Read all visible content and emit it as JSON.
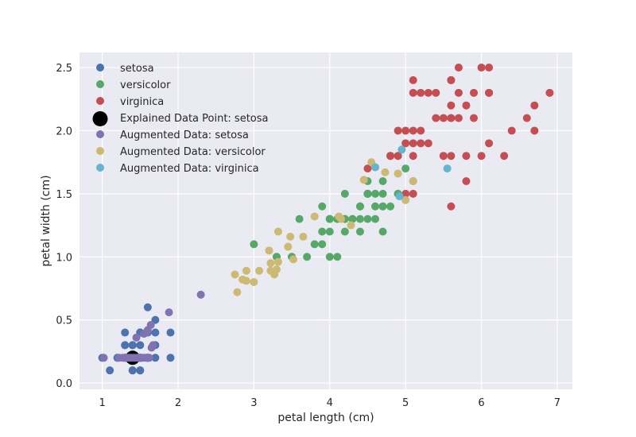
{
  "chart_data": {
    "type": "scatter",
    "title": "",
    "xlabel": "petal length (cm)",
    "ylabel": "petal width (cm)",
    "xlim": [
      0.7,
      7.2
    ],
    "ylim": [
      -0.05,
      2.62
    ],
    "xticks": [
      1,
      2,
      3,
      4,
      5,
      6,
      7
    ],
    "yticks": [
      0.0,
      0.5,
      1.0,
      1.5,
      2.0,
      2.5
    ],
    "xtick_labels": [
      "1",
      "2",
      "3",
      "4",
      "5",
      "6",
      "7"
    ],
    "ytick_labels": [
      "0.0",
      "0.5",
      "1.0",
      "1.5",
      "2.0",
      "2.5"
    ],
    "grid": true,
    "legend_position": "top-left",
    "series": [
      {
        "name": "setosa",
        "color": "#4c72b0",
        "marker": "small",
        "points": [
          [
            1.4,
            0.2
          ],
          [
            1.4,
            0.2
          ],
          [
            1.3,
            0.2
          ],
          [
            1.5,
            0.2
          ],
          [
            1.4,
            0.2
          ],
          [
            1.7,
            0.4
          ],
          [
            1.4,
            0.3
          ],
          [
            1.5,
            0.2
          ],
          [
            1.4,
            0.2
          ],
          [
            1.5,
            0.1
          ],
          [
            1.5,
            0.2
          ],
          [
            1.6,
            0.2
          ],
          [
            1.4,
            0.1
          ],
          [
            1.1,
            0.1
          ],
          [
            1.2,
            0.2
          ],
          [
            1.5,
            0.4
          ],
          [
            1.3,
            0.4
          ],
          [
            1.4,
            0.3
          ],
          [
            1.7,
            0.3
          ],
          [
            1.5,
            0.3
          ],
          [
            1.7,
            0.2
          ],
          [
            1.5,
            0.4
          ],
          [
            1.0,
            0.2
          ],
          [
            1.7,
            0.5
          ],
          [
            1.9,
            0.2
          ],
          [
            1.6,
            0.2
          ],
          [
            1.6,
            0.4
          ],
          [
            1.5,
            0.2
          ],
          [
            1.4,
            0.2
          ],
          [
            1.6,
            0.2
          ],
          [
            1.6,
            0.2
          ],
          [
            1.5,
            0.4
          ],
          [
            1.5,
            0.1
          ],
          [
            1.4,
            0.2
          ],
          [
            1.5,
            0.2
          ],
          [
            1.2,
            0.2
          ],
          [
            1.3,
            0.2
          ],
          [
            1.4,
            0.1
          ],
          [
            1.3,
            0.2
          ],
          [
            1.5,
            0.2
          ],
          [
            1.3,
            0.3
          ],
          [
            1.3,
            0.3
          ],
          [
            1.3,
            0.2
          ],
          [
            1.6,
            0.6
          ],
          [
            1.9,
            0.4
          ],
          [
            1.4,
            0.3
          ],
          [
            1.6,
            0.2
          ],
          [
            1.4,
            0.2
          ],
          [
            1.5,
            0.2
          ],
          [
            1.4,
            0.2
          ]
        ]
      },
      {
        "name": "versicolor",
        "color": "#55a868",
        "marker": "small",
        "points": [
          [
            4.7,
            1.4
          ],
          [
            4.5,
            1.5
          ],
          [
            4.9,
            1.5
          ],
          [
            4.0,
            1.3
          ],
          [
            4.6,
            1.5
          ],
          [
            4.5,
            1.3
          ],
          [
            4.7,
            1.6
          ],
          [
            3.3,
            1.0
          ],
          [
            4.6,
            1.3
          ],
          [
            3.9,
            1.4
          ],
          [
            3.5,
            1.0
          ],
          [
            4.2,
            1.5
          ],
          [
            4.0,
            1.0
          ],
          [
            4.7,
            1.4
          ],
          [
            3.6,
            1.3
          ],
          [
            4.4,
            1.4
          ],
          [
            4.5,
            1.5
          ],
          [
            4.1,
            1.0
          ],
          [
            4.5,
            1.5
          ],
          [
            3.9,
            1.1
          ],
          [
            4.8,
            1.8
          ],
          [
            4.0,
            1.3
          ],
          [
            4.9,
            1.5
          ],
          [
            4.7,
            1.2
          ],
          [
            4.3,
            1.3
          ],
          [
            4.4,
            1.4
          ],
          [
            4.8,
            1.4
          ],
          [
            5.0,
            1.7
          ],
          [
            4.5,
            1.5
          ],
          [
            3.5,
            1.0
          ],
          [
            3.8,
            1.1
          ],
          [
            3.7,
            1.0
          ],
          [
            3.9,
            1.2
          ],
          [
            5.1,
            1.6
          ],
          [
            4.5,
            1.5
          ],
          [
            4.5,
            1.6
          ],
          [
            4.7,
            1.5
          ],
          [
            4.4,
            1.3
          ],
          [
            4.1,
            1.3
          ],
          [
            4.0,
            1.3
          ],
          [
            4.4,
            1.2
          ],
          [
            4.6,
            1.4
          ],
          [
            4.0,
            1.2
          ],
          [
            3.3,
            1.0
          ],
          [
            4.2,
            1.3
          ],
          [
            4.2,
            1.2
          ],
          [
            4.2,
            1.3
          ],
          [
            4.3,
            1.3
          ],
          [
            3.0,
            1.1
          ],
          [
            4.1,
            1.3
          ]
        ]
      },
      {
        "name": "virginica",
        "color": "#c44e52",
        "marker": "small",
        "points": [
          [
            6.0,
            2.5
          ],
          [
            5.1,
            1.9
          ],
          [
            5.9,
            2.1
          ],
          [
            5.6,
            1.8
          ],
          [
            5.8,
            2.2
          ],
          [
            6.6,
            2.1
          ],
          [
            4.5,
            1.7
          ],
          [
            6.3,
            1.8
          ],
          [
            5.8,
            1.8
          ],
          [
            6.1,
            2.5
          ],
          [
            5.1,
            2.0
          ],
          [
            5.3,
            1.9
          ],
          [
            5.5,
            2.1
          ],
          [
            5.0,
            2.0
          ],
          [
            5.1,
            2.4
          ],
          [
            5.3,
            2.3
          ],
          [
            5.5,
            1.8
          ],
          [
            6.7,
            2.2
          ],
          [
            6.9,
            2.3
          ],
          [
            5.0,
            1.5
          ],
          [
            5.7,
            2.3
          ],
          [
            4.9,
            2.0
          ],
          [
            6.7,
            2.0
          ],
          [
            4.9,
            1.8
          ],
          [
            5.7,
            2.1
          ],
          [
            6.0,
            1.8
          ],
          [
            4.8,
            1.8
          ],
          [
            4.9,
            1.8
          ],
          [
            5.6,
            2.1
          ],
          [
            5.8,
            1.6
          ],
          [
            6.1,
            1.9
          ],
          [
            6.4,
            2.0
          ],
          [
            5.6,
            2.2
          ],
          [
            5.1,
            1.5
          ],
          [
            5.6,
            1.4
          ],
          [
            6.1,
            2.3
          ],
          [
            5.6,
            2.4
          ],
          [
            5.5,
            1.8
          ],
          [
            4.8,
            1.8
          ],
          [
            5.4,
            2.1
          ],
          [
            5.6,
            2.4
          ],
          [
            5.1,
            2.3
          ],
          [
            5.9,
            2.3
          ],
          [
            5.7,
            2.5
          ],
          [
            5.2,
            2.3
          ],
          [
            5.0,
            1.9
          ],
          [
            5.2,
            2.0
          ],
          [
            5.4,
            2.3
          ],
          [
            5.1,
            1.8
          ],
          [
            6.1,
            2.3
          ],
          [
            5.6,
            2.1
          ],
          [
            5.2,
            1.9
          ]
        ]
      },
      {
        "name": "Explained Data Point: setosa",
        "color": "#000000",
        "marker": "large",
        "points": [
          [
            1.4,
            0.2
          ]
        ]
      },
      {
        "name": "Augmented Data: setosa",
        "color": "#8172b2",
        "marker": "small",
        "points": [
          [
            1.02,
            0.2
          ],
          [
            1.22,
            0.2
          ],
          [
            1.27,
            0.2
          ],
          [
            1.32,
            0.2
          ],
          [
            1.35,
            0.2
          ],
          [
            1.38,
            0.2
          ],
          [
            1.42,
            0.2
          ],
          [
            1.45,
            0.2
          ],
          [
            1.48,
            0.2
          ],
          [
            1.52,
            0.2
          ],
          [
            1.55,
            0.2
          ],
          [
            1.58,
            0.2
          ],
          [
            1.62,
            0.2
          ],
          [
            1.45,
            0.36
          ],
          [
            1.55,
            0.39
          ],
          [
            1.6,
            0.42
          ],
          [
            1.64,
            0.46
          ],
          [
            1.58,
            0.4
          ],
          [
            1.67,
            0.3
          ],
          [
            1.65,
            0.28
          ],
          [
            1.88,
            0.56
          ],
          [
            2.3,
            0.7
          ]
        ]
      },
      {
        "name": "Augmented Data: versicolor",
        "color": "#ccb974",
        "marker": "small",
        "points": [
          [
            2.75,
            0.86
          ],
          [
            2.78,
            0.72
          ],
          [
            2.85,
            0.82
          ],
          [
            2.9,
            0.81
          ],
          [
            2.9,
            0.89
          ],
          [
            3.0,
            0.8
          ],
          [
            3.07,
            0.89
          ],
          [
            3.2,
            1.05
          ],
          [
            3.22,
            0.89
          ],
          [
            3.22,
            0.95
          ],
          [
            3.27,
            0.86
          ],
          [
            3.3,
            0.9
          ],
          [
            3.32,
            0.96
          ],
          [
            3.32,
            1.2
          ],
          [
            3.45,
            1.08
          ],
          [
            3.48,
            1.16
          ],
          [
            3.52,
            0.98
          ],
          [
            3.65,
            1.16
          ],
          [
            3.8,
            1.32
          ],
          [
            4.12,
            1.32
          ],
          [
            4.15,
            1.3
          ],
          [
            4.28,
            1.25
          ],
          [
            4.45,
            1.61
          ],
          [
            4.55,
            1.75
          ],
          [
            4.6,
            1.71
          ],
          [
            4.73,
            1.67
          ],
          [
            4.9,
            1.66
          ],
          [
            5.0,
            1.45
          ],
          [
            5.1,
            1.6
          ]
        ]
      },
      {
        "name": "Augmented Data: virginica",
        "color": "#64b5cd",
        "marker": "small",
        "points": [
          [
            4.6,
            1.71
          ],
          [
            4.92,
            1.48
          ],
          [
            4.95,
            1.85
          ],
          [
            5.55,
            1.7
          ]
        ]
      }
    ]
  }
}
